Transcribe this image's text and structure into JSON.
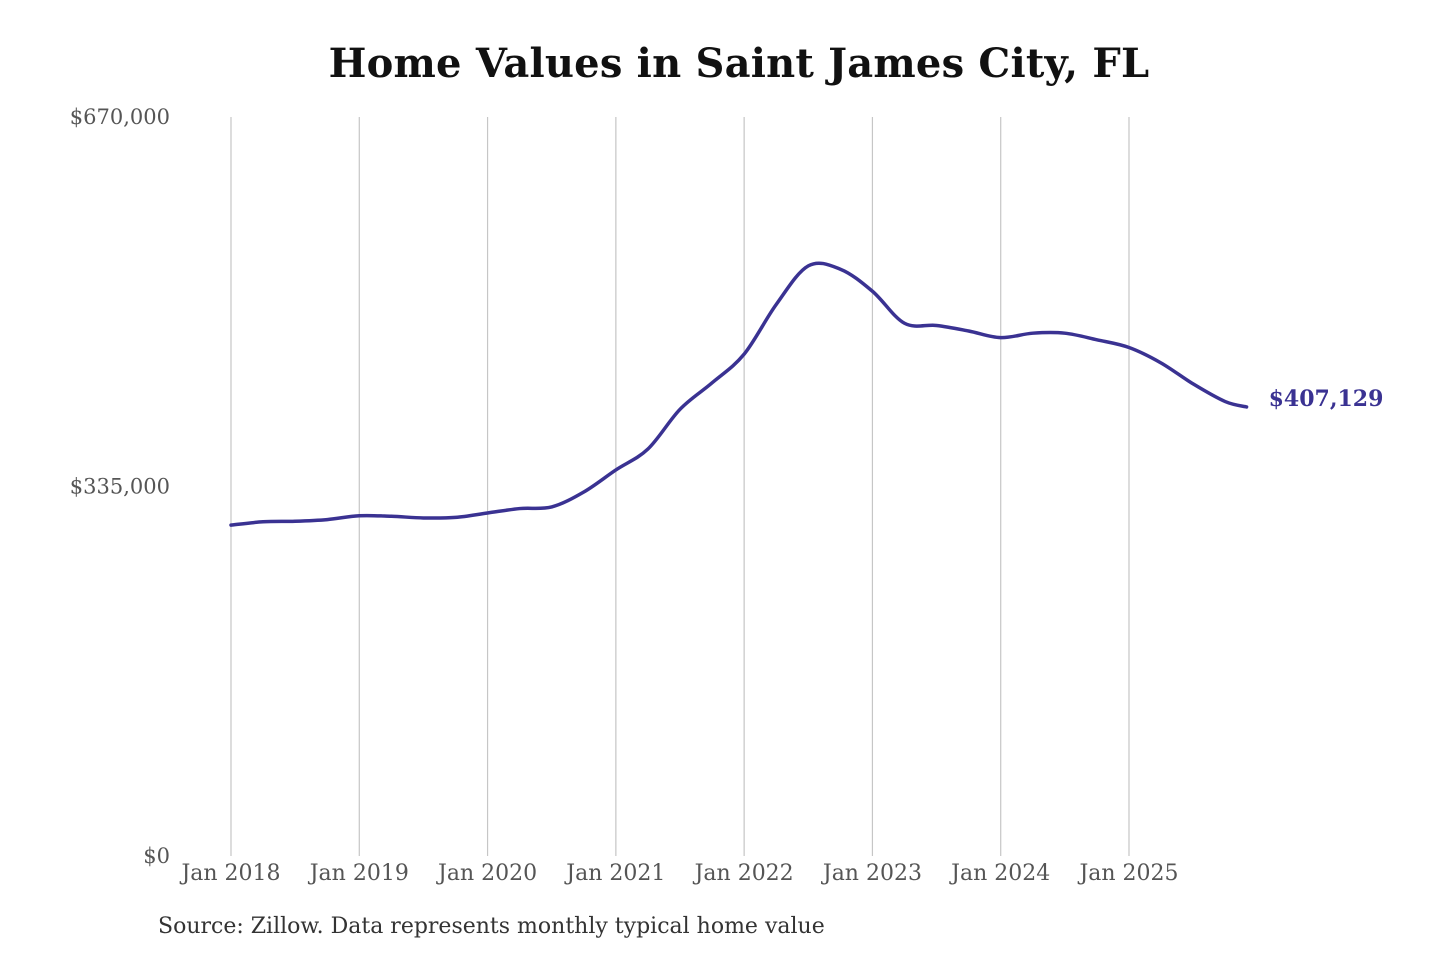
{
  "chart_data": {
    "type": "line",
    "title": "Home Values in Saint James City, FL",
    "source": "Source: Zillow. Data represents monthly typical home value",
    "xlabel": "",
    "ylabel": "",
    "ylim": [
      0,
      670000
    ],
    "xlim": [
      "2018-01",
      "2025-12"
    ],
    "y_ticks": [
      {
        "value": 0,
        "label": "$0"
      },
      {
        "value": 335000,
        "label": "$335,000"
      },
      {
        "value": 670000,
        "label": "$670,000"
      }
    ],
    "x_ticks": [
      {
        "date": "2018-01",
        "label": "Jan 2018"
      },
      {
        "date": "2019-01",
        "label": "Jan 2019"
      },
      {
        "date": "2020-01",
        "label": "Jan 2020"
      },
      {
        "date": "2021-01",
        "label": "Jan 2021"
      },
      {
        "date": "2022-01",
        "label": "Jan 2022"
      },
      {
        "date": "2023-01",
        "label": "Jan 2023"
      },
      {
        "date": "2024-01",
        "label": "Jan 2024"
      },
      {
        "date": "2025-01",
        "label": "Jan 2025"
      }
    ],
    "grid": {
      "vertical": true,
      "horizontal": false
    },
    "colors": {
      "line": "#3a3292",
      "grid": "#c6c6c6",
      "tick_text": "#555555",
      "end_label": "#3a3292"
    },
    "end_label": "$407,129",
    "series": [
      {
        "points": [
          {
            "x": "2018-01",
            "y": 300000
          },
          {
            "x": "2018-04",
            "y": 303000
          },
          {
            "x": "2018-07",
            "y": 303500
          },
          {
            "x": "2018-10",
            "y": 305000
          },
          {
            "x": "2019-01",
            "y": 308500
          },
          {
            "x": "2019-04",
            "y": 308000
          },
          {
            "x": "2019-07",
            "y": 306500
          },
          {
            "x": "2019-10",
            "y": 307000
          },
          {
            "x": "2020-01",
            "y": 311000
          },
          {
            "x": "2020-04",
            "y": 315000
          },
          {
            "x": "2020-07",
            "y": 316500
          },
          {
            "x": "2020-10",
            "y": 330000
          },
          {
            "x": "2021-01",
            "y": 350000
          },
          {
            "x": "2021-04",
            "y": 369000
          },
          {
            "x": "2021-07",
            "y": 405000
          },
          {
            "x": "2021-10",
            "y": 429000
          },
          {
            "x": "2022-01",
            "y": 455000
          },
          {
            "x": "2022-04",
            "y": 500000
          },
          {
            "x": "2022-07",
            "y": 535000
          },
          {
            "x": "2022-10",
            "y": 532000
          },
          {
            "x": "2023-01",
            "y": 512000
          },
          {
            "x": "2023-04",
            "y": 483000
          },
          {
            "x": "2023-07",
            "y": 481000
          },
          {
            "x": "2023-10",
            "y": 476000
          },
          {
            "x": "2024-01",
            "y": 470000
          },
          {
            "x": "2024-04",
            "y": 474000
          },
          {
            "x": "2024-07",
            "y": 474000
          },
          {
            "x": "2024-10",
            "y": 468000
          },
          {
            "x": "2025-01",
            "y": 461000
          },
          {
            "x": "2025-04",
            "y": 447000
          },
          {
            "x": "2025-07",
            "y": 428000
          },
          {
            "x": "2025-10",
            "y": 412000
          },
          {
            "x": "2025-12",
            "y": 407129
          }
        ]
      }
    ]
  }
}
